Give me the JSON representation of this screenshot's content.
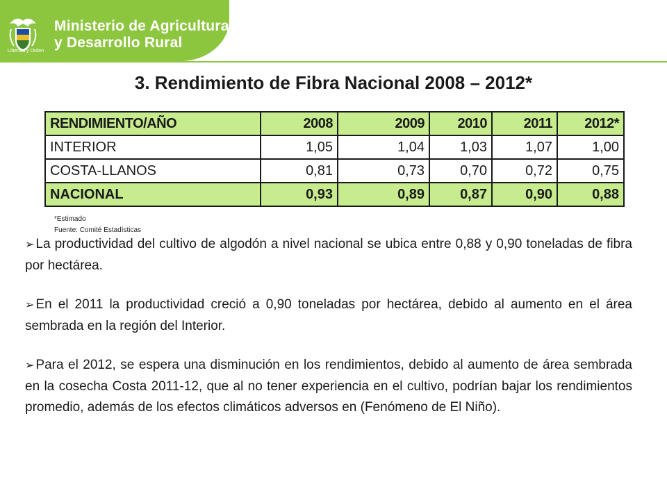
{
  "header": {
    "ministry_line1": "Ministerio de Agricultura",
    "ministry_line2": "y Desarrollo Rural",
    "seal_motto": "Libertad y Orden",
    "seal_icon": "colombia-coat-of-arms-icon",
    "accent_color": "#8cc63f"
  },
  "title": "3. Rendimiento de Fibra  Nacional 2008 – 2012*",
  "table": {
    "header_fill": "#c6ec8e",
    "columns": [
      "RENDIMIENTO/AÑO",
      "2008",
      "2009",
      "2010",
      "2011",
      "2012*"
    ],
    "rows": [
      {
        "label": "INTERIOR",
        "values": [
          "1,05",
          "1,04",
          "1,03",
          "1,07",
          "1,00"
        ]
      },
      {
        "label": "COSTA-LLANOS",
        "values": [
          "0,81",
          "0,73",
          "0,70",
          "0,72",
          "0,75"
        ]
      },
      {
        "label": "NACIONAL",
        "values": [
          "0,93",
          "0,89",
          "0,87",
          "0,90",
          "0,88"
        ]
      }
    ]
  },
  "notes": {
    "estimate": "*Estimado",
    "source": "Fuente: Comité Estadísticas"
  },
  "bullets": [
    "La productividad del cultivo de algodón a  nivel nacional se ubica entre 0,88 y 0,90 toneladas de fibra por hectárea.",
    "En el 2011 la productividad creció a 0,90 toneladas por hectárea, debido al aumento en el área sembrada en la región del Interior.",
    "Para el 2012, se espera una disminución en los rendimientos, debido  al aumento de área sembrada en la cosecha Costa 2011-12, que al no tener experiencia en el cultivo, podrían bajar los rendimientos promedio, además de los efectos climáticos adversos en (Fenómeno de El Niño)."
  ],
  "bullet_icon": "arrow-bullet-icon"
}
